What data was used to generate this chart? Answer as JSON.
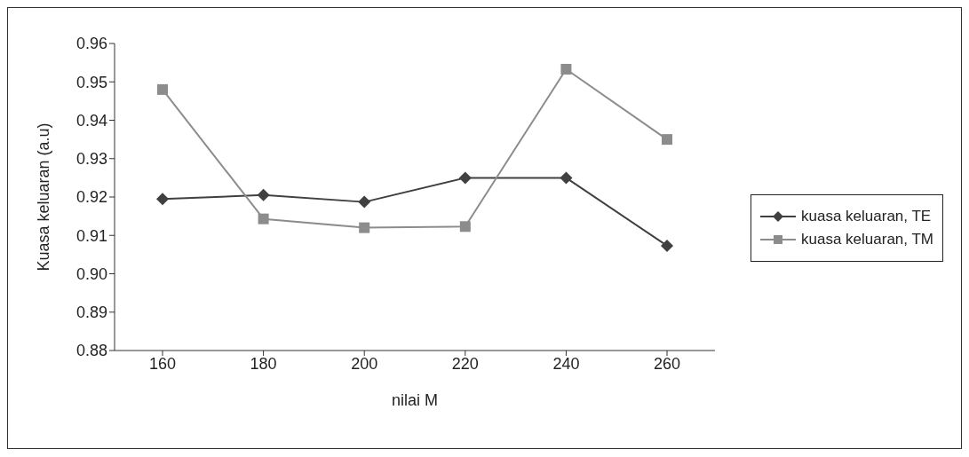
{
  "chart_data": {
    "type": "line",
    "xlabel": "nilai M",
    "ylabel": "Kuasa keluaran (a.u)",
    "categories": [
      "160",
      "180",
      "200",
      "220",
      "240",
      "260"
    ],
    "series": [
      {
        "name": "kuasa keluaran, TE",
        "color": "#404040",
        "marker": "diamond",
        "values": [
          0.9195,
          0.9205,
          0.9187,
          0.925,
          0.925,
          0.9073
        ]
      },
      {
        "name": "kuasa keluaran, TM",
        "color": "#8c8c8c",
        "marker": "square",
        "values": [
          0.948,
          0.9143,
          0.912,
          0.9123,
          0.9533,
          0.935
        ]
      }
    ],
    "ylim": [
      0.88,
      0.96
    ],
    "yticks": [
      {
        "value": 0.88,
        "label": "0.88"
      },
      {
        "value": 0.89,
        "label": "0.89"
      },
      {
        "value": 0.9,
        "label": "0.90"
      },
      {
        "value": 0.91,
        "label": "0.91"
      },
      {
        "value": 0.92,
        "label": "0.92"
      },
      {
        "value": 0.93,
        "label": "0.93"
      },
      {
        "value": 0.94,
        "label": "0.94"
      },
      {
        "value": 0.95,
        "label": "0.95"
      },
      {
        "value": 0.96,
        "label": "0.96"
      }
    ],
    "grid": false,
    "legend": "right"
  }
}
